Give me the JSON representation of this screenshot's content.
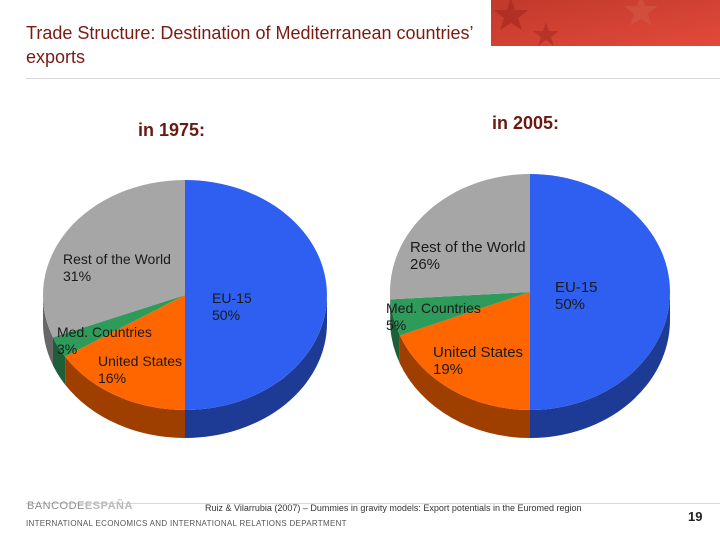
{
  "slide": {
    "title": "Trade Structure: Destination of Mediterranean countries’ exports",
    "source": "Ruiz & Vilarrubia (2007) – Dummies in gravity models: Export potentials in the Euromed region",
    "logo_left": "BANCODE",
    "logo_right": "ESPAÑA",
    "department": "INTERNATIONAL ECONOMICS AND INTERNATIONAL RELATIONS DEPARTMENT",
    "page_number": "19"
  },
  "colors": {
    "eu15": "#2f5ff0",
    "united_states": "#ff6600",
    "med_countries": "#2e9b5a",
    "rest_of_world": "#a6a6a6",
    "title": "#7a1a12"
  },
  "chart_data": [
    {
      "type": "pie",
      "title": "in 1975:",
      "categories": [
        "EU-15",
        "United States",
        "Med. Countries",
        "Rest of the World"
      ],
      "values": [
        50,
        16,
        3,
        31
      ],
      "value_labels": [
        "50%",
        "16%",
        "3%",
        "31%"
      ]
    },
    {
      "type": "pie",
      "title": "in 2005:",
      "categories": [
        "EU-15",
        "United States",
        "Med. Countries",
        "Rest of the World"
      ],
      "values": [
        50,
        19,
        5,
        26
      ],
      "value_labels": [
        "50%",
        "19%",
        "5%",
        "26%"
      ]
    }
  ]
}
